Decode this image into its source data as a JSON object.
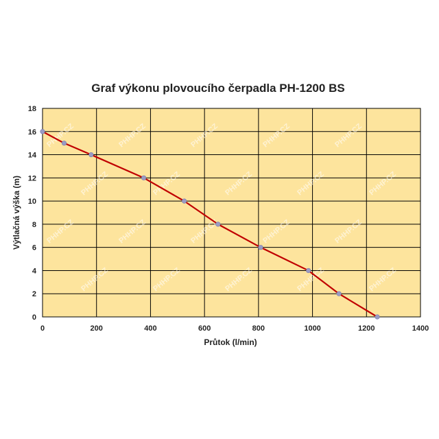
{
  "chart_data": {
    "type": "line",
    "title": "Graf výkonu plovoucího čerpadla PH-1200 BS",
    "xlabel": "Průtok (l/min)",
    "ylabel": "Výtlačná výška (m)",
    "xlim": [
      0,
      1400
    ],
    "ylim": [
      0,
      18
    ],
    "xticks": [
      0,
      200,
      400,
      600,
      800,
      1000,
      1200,
      1400
    ],
    "yticks": [
      0,
      2,
      4,
      6,
      8,
      10,
      12,
      14,
      16,
      18
    ],
    "grid": true,
    "legend": "none",
    "series": [
      {
        "x": [
          0,
          80,
          180,
          375,
          525,
          650,
          808,
          985,
          1098,
          1240
        ],
        "y": [
          16,
          15,
          14,
          12,
          10,
          8,
          6,
          4,
          2,
          0
        ]
      }
    ],
    "watermark": "PHHP.CZ",
    "colors": {
      "plot_background": "#fde49d",
      "line": "#c00000",
      "marker": "#9a9bc4",
      "grid": "#000000"
    }
  }
}
